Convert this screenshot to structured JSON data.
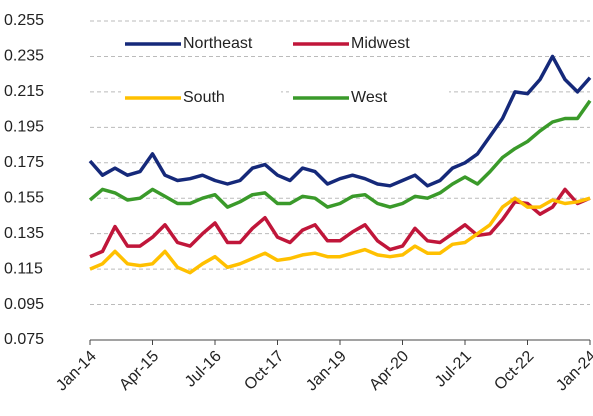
{
  "chart_data": {
    "type": "line",
    "categories": [
      "Jan-14",
      null,
      null,
      null,
      null,
      "Apr-15",
      null,
      null,
      null,
      null,
      "Jul-16",
      null,
      null,
      null,
      null,
      "Oct-17",
      null,
      null,
      null,
      null,
      "Jan-19",
      null,
      null,
      null,
      null,
      "Apr-20",
      null,
      null,
      null,
      null,
      "Jul-21",
      null,
      null,
      null,
      null,
      "Oct-22",
      null,
      null,
      null,
      null,
      "Jan-24"
    ],
    "series": [
      {
        "name": "Northeast",
        "color": "#15297a",
        "values": [
          0.176,
          0.168,
          0.172,
          0.168,
          0.17,
          0.18,
          0.168,
          0.165,
          0.166,
          0.168,
          0.165,
          0.163,
          0.165,
          0.172,
          0.174,
          0.168,
          0.165,
          0.172,
          0.17,
          0.163,
          0.166,
          0.168,
          0.166,
          0.163,
          0.162,
          0.165,
          0.168,
          0.162,
          0.165,
          0.172,
          0.175,
          0.18,
          0.19,
          0.2,
          0.215,
          0.214,
          0.222,
          0.235,
          0.222,
          0.215,
          0.223
        ]
      },
      {
        "name": "Midwest",
        "color": "#c0163a",
        "values": [
          0.122,
          0.125,
          0.139,
          0.128,
          0.128,
          0.133,
          0.14,
          0.13,
          0.128,
          0.135,
          0.141,
          0.13,
          0.13,
          0.138,
          0.144,
          0.133,
          0.13,
          0.137,
          0.14,
          0.131,
          0.131,
          0.136,
          0.14,
          0.131,
          0.126,
          0.128,
          0.138,
          0.131,
          0.13,
          0.135,
          0.14,
          0.134,
          0.135,
          0.143,
          0.153,
          0.152,
          0.146,
          0.15,
          0.16,
          0.152,
          0.155
        ]
      },
      {
        "name": "South",
        "color": "#ffc000",
        "values": [
          0.115,
          0.118,
          0.125,
          0.118,
          0.117,
          0.118,
          0.125,
          0.116,
          0.113,
          0.118,
          0.122,
          0.116,
          0.118,
          0.121,
          0.124,
          0.12,
          0.121,
          0.123,
          0.124,
          0.122,
          0.122,
          0.124,
          0.126,
          0.123,
          0.122,
          0.123,
          0.128,
          0.124,
          0.124,
          0.129,
          0.13,
          0.135,
          0.14,
          0.15,
          0.155,
          0.15,
          0.15,
          0.154,
          0.152,
          0.153,
          0.155
        ]
      },
      {
        "name": "West",
        "color": "#3a9a2a",
        "values": [
          0.154,
          0.16,
          0.158,
          0.154,
          0.155,
          0.16,
          0.156,
          0.152,
          0.152,
          0.155,
          0.157,
          0.15,
          0.153,
          0.157,
          0.158,
          0.152,
          0.152,
          0.156,
          0.155,
          0.15,
          0.152,
          0.156,
          0.157,
          0.152,
          0.15,
          0.152,
          0.156,
          0.155,
          0.158,
          0.163,
          0.167,
          0.163,
          0.17,
          0.178,
          0.183,
          0.187,
          0.193,
          0.198,
          0.2,
          0.2,
          0.21
        ]
      }
    ],
    "ylim": [
      0.075,
      0.255
    ],
    "yticks": [
      0.075,
      0.095,
      0.115,
      0.135,
      0.155,
      0.175,
      0.195,
      0.215,
      0.235,
      0.255
    ],
    "grid": true,
    "legend": "upper-left"
  }
}
